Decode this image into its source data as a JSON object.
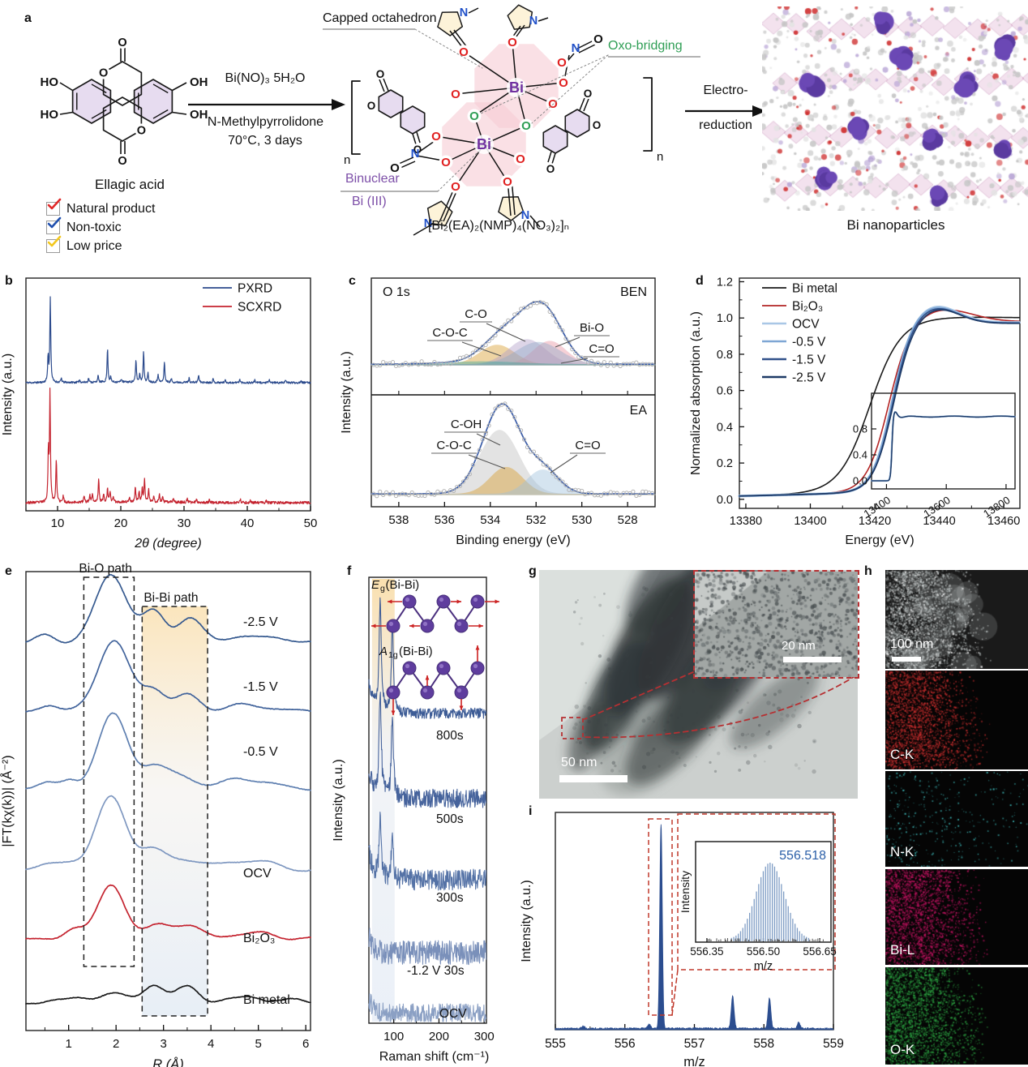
{
  "panels": {
    "a": "a",
    "b": "b",
    "c": "c",
    "d": "d",
    "e": "e",
    "f": "f",
    "g": "g",
    "h": "h",
    "i": "i"
  },
  "panel_a": {
    "molecule_name": "Ellagic acid",
    "checklist": [
      {
        "label": "Natural product",
        "check_color": "#e02828"
      },
      {
        "label": "Non-toxic",
        "check_color": "#1f4fae"
      },
      {
        "label": "Low price",
        "check_color": "#f2c71d"
      }
    ],
    "reaction": {
      "reagent": "Bi(NO)₃ 5H₂O",
      "solvent": "N-Methylpyrrolidone",
      "conditions": "70°C, 3 days"
    },
    "annotations": {
      "capped": "Capped octahedron",
      "oxo": "Oxo-bridging",
      "oxo_color": "#2f9e55",
      "binuclear": "Binuclear",
      "bi_iii": "Bi (III)",
      "binuclear_color": "#7d4fa8"
    },
    "formula": "[Bi₂(EA)₂(NMP)₄(NO₃)₂]ₙ",
    "electroreduction": {
      "line1": "Electro-",
      "line2": "reduction"
    },
    "product_label": "Bi nanoparticles",
    "repeat_unit": "n",
    "atoms": {
      "O": "O",
      "OH": "OH",
      "HO": "HO",
      "Bi": "Bi",
      "N": "N"
    }
  },
  "chart_data": [
    {
      "id": "b",
      "type": "line",
      "xlabel": "2θ (degree)",
      "ylabel": "Intensity (a.u.)",
      "xlim": [
        5,
        50
      ],
      "xticks": [
        10,
        20,
        30,
        40,
        50
      ],
      "legend_position": "top-right",
      "grid": false,
      "series": [
        {
          "name": "PXRD",
          "color": "#2b4a8c",
          "peaks": [
            [
              8.5,
              0.3
            ],
            [
              8.85,
              1.0
            ],
            [
              10.6,
              0.05
            ],
            [
              13.5,
              0.03
            ],
            [
              14.9,
              0.05
            ],
            [
              16.4,
              0.08
            ],
            [
              17.9,
              0.4
            ],
            [
              18.4,
              0.06
            ],
            [
              20.1,
              0.04
            ],
            [
              22.4,
              0.26
            ],
            [
              23.0,
              0.1
            ],
            [
              23.6,
              0.36
            ],
            [
              24.3,
              0.1
            ],
            [
              25.9,
              0.1
            ],
            [
              26.9,
              0.24
            ],
            [
              28.0,
              0.04
            ],
            [
              30.8,
              0.05
            ],
            [
              32.3,
              0.09
            ],
            [
              34.6,
              0.04
            ],
            [
              36.5,
              0.03
            ],
            [
              38.8,
              0.04
            ],
            [
              41.2,
              0.03
            ],
            [
              43.5,
              0.03
            ],
            [
              46.0,
              0.03
            ],
            [
              48.5,
              0.03
            ]
          ]
        },
        {
          "name": "SCXRD",
          "color": "#c4232f",
          "peaks": [
            [
              8.55,
              0.45
            ],
            [
              8.8,
              1.0
            ],
            [
              9.8,
              0.4
            ],
            [
              10.9,
              0.06
            ],
            [
              14.2,
              0.06
            ],
            [
              15.1,
              0.07
            ],
            [
              15.5,
              0.08
            ],
            [
              16.5,
              0.22
            ],
            [
              17.3,
              0.08
            ],
            [
              17.9,
              0.12
            ],
            [
              18.3,
              0.1
            ],
            [
              18.8,
              0.05
            ],
            [
              21.4,
              0.04
            ],
            [
              22.3,
              0.14
            ],
            [
              22.9,
              0.1
            ],
            [
              23.4,
              0.12
            ],
            [
              23.75,
              0.21
            ],
            [
              24.4,
              0.12
            ],
            [
              25.2,
              0.05
            ],
            [
              26.1,
              0.07
            ],
            [
              26.6,
              0.05
            ],
            [
              28.3,
              0.03
            ],
            [
              30.5,
              0.03
            ],
            [
              32.0,
              0.03
            ],
            [
              34.0,
              0.02
            ],
            [
              38.9,
              0.03
            ],
            [
              40.5,
              0.02
            ],
            [
              43.0,
              0.02
            ]
          ]
        }
      ]
    },
    {
      "id": "c",
      "type": "area",
      "xlabel": "Binding energy (eV)",
      "ylabel": "Intensity (a.u.)",
      "xlim": [
        539.2,
        526.8
      ],
      "xticks": [
        538,
        536,
        534,
        532,
        530,
        528
      ],
      "corner_label": "O 1s",
      "envelope_color": "#3a5ca8",
      "panels": [
        {
          "name": "BEN",
          "components": [
            {
              "label": "C-O-C",
              "color": "#d99a26",
              "center": 533.7,
              "sigma": 0.75,
              "amp": 0.35
            },
            {
              "label": "C-O",
              "color": "#b09cc8",
              "center": 532.4,
              "sigma": 0.8,
              "amp": 0.45
            },
            {
              "label": "Bi-O",
              "color": "#e8909e",
              "center": 531.4,
              "sigma": 0.7,
              "amp": 0.42
            },
            {
              "label": "C=O",
              "color": "#8fa8c8",
              "center": 531.9,
              "sigma": 0.95,
              "amp": 0.4
            },
            {
              "label": "",
              "color": "#3aa79a",
              "center": 534.4,
              "sigma": 1.6,
              "amp": 0.05
            }
          ]
        },
        {
          "name": "EA",
          "components": [
            {
              "label": "C-OH",
              "color": "#bdbdbd",
              "center": 533.6,
              "sigma": 0.85,
              "amp": 1.0
            },
            {
              "label": "C-O-C",
              "color": "#d99a26",
              "center": 533.3,
              "sigma": 0.7,
              "amp": 0.42
            },
            {
              "label": "C=O",
              "color": "#9cc0dd",
              "center": 531.7,
              "sigma": 0.68,
              "amp": 0.38
            }
          ]
        }
      ]
    },
    {
      "id": "d",
      "type": "line",
      "xlabel": "Energy (eV)",
      "ylabel": "Normalized absorption (a.u.)",
      "xlim": [
        13378,
        13465
      ],
      "ylim": [
        -0.05,
        1.22
      ],
      "xticks": [
        13380,
        13400,
        13420,
        13440,
        13460
      ],
      "yticks": [
        0.0,
        0.2,
        0.4,
        0.6,
        0.8,
        1.0,
        1.2
      ],
      "series": [
        {
          "name": "Bi metal",
          "color": "#1a1a1a",
          "edge": 13418.5,
          "width": 4.8,
          "peak": 1.005,
          "peak_x": 13447,
          "peak_w": 14,
          "tail": 1.0
        },
        {
          "name": "Bi₂O₃",
          "color": "#b32424",
          "edge": 13424.2,
          "width": 3.4,
          "peak": 1.05,
          "peak_x": 13441,
          "peak_w": 9,
          "tail": 0.98
        },
        {
          "name": "OCV",
          "color": "#a9c7e6",
          "edge": 13425.2,
          "width": 3.0,
          "peak": 1.07,
          "peak_x": 13438.5,
          "peak_w": 7,
          "tail": 0.975
        },
        {
          "name": "-0.5 V",
          "color": "#7ea6d4",
          "edge": 13425.0,
          "width": 3.0,
          "peak": 1.065,
          "peak_x": 13438.5,
          "peak_w": 7,
          "tail": 0.973
        },
        {
          "name": "-1.5 V",
          "color": "#31518a",
          "edge": 13425.4,
          "width": 3.0,
          "peak": 1.06,
          "peak_x": 13438.7,
          "peak_w": 7,
          "tail": 0.972
        },
        {
          "name": "-2.5 V",
          "color": "#1d3a66",
          "edge": 13425.6,
          "width": 3.1,
          "peak": 1.055,
          "peak_x": 13439,
          "peak_w": 7,
          "tail": 0.97
        }
      ],
      "inset": {
        "xlim": [
          13350,
          13830
        ],
        "xticks": [
          13400,
          13600,
          13800
        ],
        "yticks": [
          0.0,
          0.4,
          0.8
        ]
      }
    },
    {
      "id": "e",
      "type": "line",
      "xlabel": "R (Å)",
      "ylabel": "|FT(kχ(k))| (Å⁻²)",
      "xlim": [
        0.1,
        6.1
      ],
      "xticks": [
        1,
        2,
        3,
        4,
        5,
        6
      ],
      "annotations": [
        {
          "label": "Bi-O path",
          "range": [
            1.32,
            2.38
          ]
        },
        {
          "label": "Bi-Bi path",
          "range": [
            2.55,
            3.93
          ]
        }
      ],
      "series": [
        {
          "name": "-2.5 V",
          "color": "#35598f",
          "humps": [
            [
              0.5,
              0.2,
              0.06
            ],
            [
              1.9,
              0.33,
              0.5
            ],
            [
              2.8,
              0.24,
              0.22
            ],
            [
              3.55,
              0.26,
              0.18
            ],
            [
              4.6,
              0.3,
              0.05
            ],
            [
              5.4,
              0.3,
              0.04
            ]
          ]
        },
        {
          "name": "-1.5 V",
          "color": "#41639b",
          "humps": [
            [
              0.6,
              0.2,
              0.05
            ],
            [
              1.95,
              0.33,
              0.52
            ],
            [
              2.8,
              0.24,
              0.16
            ],
            [
              3.5,
              0.26,
              0.12
            ],
            [
              4.55,
              0.3,
              0.05
            ],
            [
              5.3,
              0.3,
              0.03
            ]
          ]
        },
        {
          "name": "-0.5 V",
          "color": "#5e7fb0",
          "humps": [
            [
              0.55,
              0.2,
              0.05
            ],
            [
              1.02,
              0.15,
              0.05
            ],
            [
              1.93,
              0.32,
              0.54
            ],
            [
              2.78,
              0.25,
              0.13
            ],
            [
              3.3,
              0.4,
              0.09
            ],
            [
              4.5,
              0.3,
              0.06
            ],
            [
              5.1,
              0.3,
              0.05
            ]
          ]
        },
        {
          "name": "OCV",
          "color": "#7e97c0",
          "humps": [
            [
              0.6,
              0.25,
              0.04
            ],
            [
              1.05,
              0.2,
              0.05
            ],
            [
              1.9,
              0.32,
              0.53
            ],
            [
              2.75,
              0.25,
              0.12
            ],
            [
              3.4,
              0.4,
              0.08
            ],
            [
              4.6,
              0.35,
              0.06
            ],
            [
              5.2,
              0.3,
              0.04
            ]
          ]
        },
        {
          "name": "Bi₂O₃",
          "color": "#c4232f",
          "humps": [
            [
              1.1,
              0.2,
              0.07
            ],
            [
              1.9,
              0.28,
              0.4
            ],
            [
              2.9,
              0.25,
              0.1
            ],
            [
              3.5,
              0.3,
              0.09
            ],
            [
              4.5,
              0.3,
              0.03
            ],
            [
              5.15,
              0.25,
              0.04
            ]
          ]
        },
        {
          "name": "Bi metal",
          "color": "#1a1a1a",
          "humps": [
            [
              0.7,
              0.2,
              0.03
            ],
            [
              1.2,
              0.2,
              0.03
            ],
            [
              1.9,
              0.3,
              0.08
            ],
            [
              2.8,
              0.22,
              0.14
            ],
            [
              3.5,
              0.25,
              0.12
            ],
            [
              4.3,
              0.2,
              0.03
            ],
            [
              4.85,
              0.25,
              0.045
            ],
            [
              5.6,
              0.3,
              0.03
            ]
          ]
        }
      ]
    },
    {
      "id": "f",
      "type": "line",
      "xlabel": "Raman shift (cm⁻¹)",
      "ylabel": "Intensity (a.u.)",
      "xlim": [
        45,
        305
      ],
      "xticks": [
        100,
        200,
        300
      ],
      "band": [
        52,
        102
      ],
      "peak_positions": [
        70,
        97
      ],
      "modes": [
        {
          "pre": "E",
          "sub": "g",
          "post": "(Bi-Bi)"
        },
        {
          "pre": "A",
          "sub": "1g",
          "post": "(Bi-Bi)"
        }
      ],
      "series": [
        {
          "name": "800s",
          "color": "#3d5c96",
          "p1": 0.85,
          "p2": 0.7,
          "noise": 0.028
        },
        {
          "name": "500s",
          "color": "#46639c",
          "p1": 0.82,
          "p2": 0.66,
          "noise": 0.05
        },
        {
          "name": "300s",
          "color": "#5472a6",
          "p1": 0.45,
          "p2": 0.4,
          "noise": 0.06
        },
        {
          "name": "-1.2 V 30s",
          "color": "#7a90ba",
          "p1": 0,
          "p2": 0,
          "noise": 0.068
        },
        {
          "name": "OCV",
          "color": "#8ba0c4",
          "p1": 0,
          "p2": 0,
          "noise": 0.055
        }
      ]
    },
    {
      "id": "i",
      "type": "line",
      "xlabel": "m/z",
      "ylabel": "Intensity (a.u.)",
      "xlim": [
        555,
        559
      ],
      "xticks": [
        555,
        556,
        557,
        558,
        559
      ],
      "color": "#2b4d8f",
      "peaks": [
        [
          555.4,
          0.012
        ],
        [
          556.35,
          0.02
        ],
        [
          556.52,
          1.0
        ],
        [
          557.55,
          0.16
        ],
        [
          558.08,
          0.15
        ],
        [
          558.5,
          0.03
        ]
      ],
      "inset": {
        "peak_label": "556.518",
        "label_color": "#2b5fa8",
        "xticks": [
          "556.35",
          "556.50",
          "556.65"
        ],
        "xlabel": "m/z",
        "ylabel": "Intensity",
        "center": 556.518
      }
    }
  ],
  "panel_g": {
    "scalebar_main": "50 nm",
    "scalebar_inset": "20 nm"
  },
  "panel_h": {
    "maps": [
      {
        "name": "STEM",
        "label": "100 nm",
        "type": "stem",
        "color": "#e8e8e8"
      },
      {
        "name": "C-K",
        "label": "C-K",
        "color": "#d23030"
      },
      {
        "name": "N-K",
        "label": "N-K",
        "color": "#45cfcf"
      },
      {
        "name": "Bi-L",
        "label": "Bi-L",
        "color": "#d01468"
      },
      {
        "name": "O-K",
        "label": "O-K",
        "color": "#2fae46"
      }
    ]
  }
}
